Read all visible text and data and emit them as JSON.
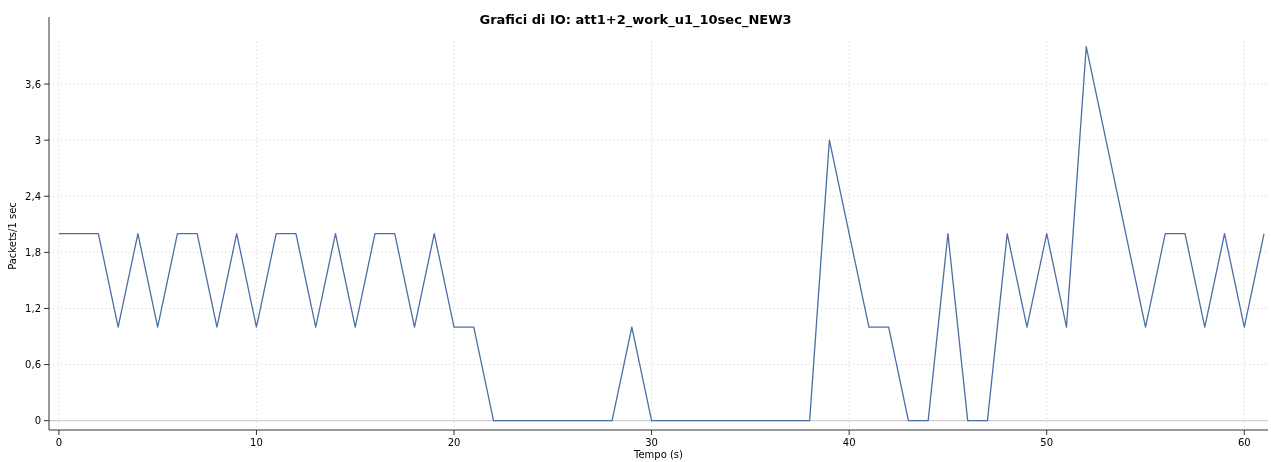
{
  "chart_data": {
    "type": "line",
    "title": "Grafici di IO: att1+2_work_u1_10sec_NEW3",
    "xlabel": "Tempo (s)",
    "ylabel": "Packets/1 sec",
    "x": [
      0,
      1,
      2,
      3,
      4,
      5,
      6,
      7,
      8,
      9,
      10,
      11,
      12,
      13,
      14,
      15,
      16,
      17,
      18,
      19,
      20,
      21,
      22,
      23,
      24,
      25,
      26,
      27,
      28,
      29,
      30,
      31,
      32,
      33,
      34,
      35,
      36,
      37,
      38,
      39,
      40,
      41,
      42,
      43,
      44,
      45,
      46,
      47,
      48,
      49,
      50,
      51,
      52,
      53,
      54,
      55,
      56,
      57,
      58,
      59,
      60,
      61
    ],
    "series": [
      {
        "color": "#4b6fa5",
        "values": [
          2,
          2,
          2,
          1,
          2,
          1,
          2,
          2,
          1,
          2,
          1,
          2,
          2,
          1,
          2,
          1,
          2,
          2,
          1,
          2,
          1,
          1,
          0,
          0,
          0,
          0,
          0,
          0,
          0,
          1,
          0,
          0,
          0,
          0,
          0,
          0,
          0,
          0,
          0,
          3,
          2,
          1,
          1,
          0,
          0,
          2,
          0,
          0,
          2,
          1,
          2,
          1,
          4,
          3,
          2,
          1,
          2,
          2,
          1,
          2,
          1,
          2
        ]
      }
    ],
    "xlim": [
      -0.5,
      61.2
    ],
    "xticks": [
      0,
      10,
      20,
      30,
      40,
      50,
      60
    ],
    "ylim": [
      -0.1,
      4.05
    ],
    "yticks": [
      0,
      {
        "value": 0.6,
        "label": "0,6"
      },
      {
        "value": 1.2,
        "label": "1,2"
      },
      {
        "value": 1.8,
        "label": "1,8"
      },
      {
        "value": 2.4,
        "label": "2,4"
      },
      3,
      {
        "value": 3.6,
        "label": "3,6"
      }
    ],
    "grid": true,
    "marker": "none",
    "line_style": "solid"
  }
}
